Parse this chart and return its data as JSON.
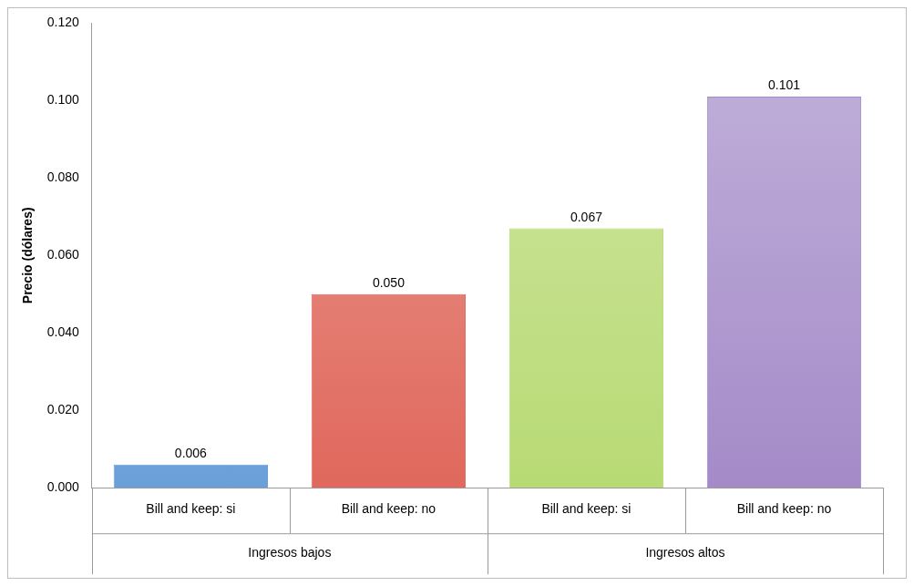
{
  "chart_data": {
    "type": "bar",
    "ylabel": "Precio (dólares)",
    "categories": [
      "Bill and keep: si",
      "Bill and keep: no",
      "Bill and keep: si",
      "Bill and keep: no"
    ],
    "values": [
      0.006,
      0.05,
      0.067,
      0.101
    ],
    "colors": [
      "#6a9fd8",
      "#e0685c",
      "#b8da74",
      "#a48bc8"
    ],
    "value_labels": [
      "0.006",
      "0.050",
      "0.067",
      "0.101"
    ],
    "ylim": [
      0,
      0.12
    ],
    "yticks": [
      {
        "value": 0,
        "label": "0.000"
      },
      {
        "value": 0.02,
        "label": "0.020"
      },
      {
        "value": 0.04,
        "label": "0.040"
      },
      {
        "value": 0.06,
        "label": "0.060"
      },
      {
        "value": 0.08,
        "label": "0.080"
      },
      {
        "value": 0.1,
        "label": "0.100"
      },
      {
        "value": 0.12,
        "label": "0.120"
      }
    ],
    "annotations": [
      "Ingresos bajos",
      "Ingresos altos"
    ],
    "grid": false,
    "legend": false
  }
}
